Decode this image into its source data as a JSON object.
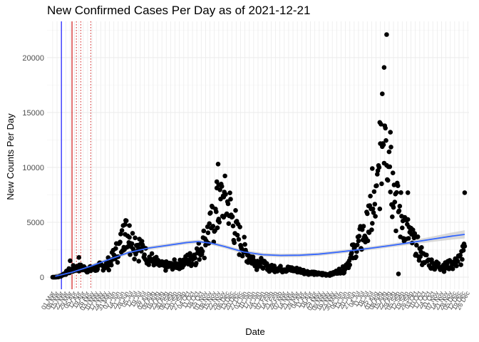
{
  "chart_data": {
    "type": "scatter",
    "title": "New Confirmed Cases Per Day as of 2021-12-21",
    "xlabel": "Date",
    "ylabel": "New Counts Per Day",
    "xlim": [
      "2020-02-21",
      "2021-12-28"
    ],
    "ylim": [
      -1100,
      23300
    ],
    "y_ticks": [
      0,
      5000,
      10000,
      15000,
      20000
    ],
    "x_tick_labels": [
      "01 Mar",
      "08 Mar",
      "15 Mar",
      "22 Mar",
      "29 Mar",
      "05 Apr",
      "12 Apr",
      "19 Apr",
      "26 Apr",
      "03 May",
      "10 May",
      "17 May",
      "24 May",
      "31 May",
      "07 Jun",
      "14 Jun",
      "21 Jun",
      "28 Jun",
      "05 Jul",
      "12 Jul",
      "19 Jul",
      "26 Jul",
      "02 Aug",
      "09 Aug",
      "16 Aug",
      "23 Aug",
      "30 Aug",
      "06 Sep",
      "13 Sep",
      "20 Sep",
      "27 Sep",
      "04 Oct",
      "11 Oct",
      "18 Oct",
      "25 Oct",
      "01 Nov",
      "08 Nov",
      "15 Nov",
      "22 Nov",
      "29 Nov",
      "06 Dec",
      "13 Dec",
      "20 Dec",
      "27 Dec",
      "03 Jan",
      "10 Jan",
      "17 Jan",
      "24 Jan",
      "31 Jan",
      "07 Feb",
      "14 Feb",
      "21 Feb",
      "28 Feb",
      "07 Mar",
      "14 Mar",
      "21 Mar",
      "28 Mar",
      "04 Apr",
      "11 Apr",
      "18 Apr",
      "25 Apr",
      "02 May",
      "09 May",
      "16 May",
      "23 May",
      "30 May",
      "06 Jun",
      "13 Jun",
      "20 Jun",
      "27 Jun",
      "04 Jul",
      "11 Jul",
      "18 Jul",
      "25 Jul",
      "01 Aug",
      "08 Aug",
      "15 Aug",
      "22 Aug",
      "29 Aug",
      "05 Sep",
      "12 Sep",
      "19 Sep",
      "26 Sep",
      "03 Oct",
      "10 Oct",
      "17 Oct",
      "24 Oct",
      "31 Oct",
      "07 Nov",
      "14 Nov",
      "21 Nov",
      "28 Nov",
      "05 Dec",
      "12 Dec",
      "19 Dec",
      "26 Dec"
    ],
    "x_tick_label_rotation_deg": -60,
    "grid": true,
    "legend": "none",
    "reference_lines": [
      {
        "date": "2020-03-15",
        "color": "#0000ff",
        "style": "solid"
      },
      {
        "date": "2020-04-01",
        "color": "#cc0000",
        "style": "solid"
      },
      {
        "date": "2020-04-08",
        "color": "#cc0000",
        "style": "dotted"
      },
      {
        "date": "2020-04-15",
        "color": "#cc0000",
        "style": "dotted"
      },
      {
        "date": "2020-05-01",
        "color": "#cc0000",
        "style": "dotted"
      }
    ],
    "series": [
      {
        "marker": "point",
        "color": "#000000",
        "anchors": [
          [
            "2020-03-01",
            0
          ],
          [
            "2020-03-10",
            20
          ],
          [
            "2020-03-15",
            150
          ],
          [
            "2020-03-22",
            400
          ],
          [
            "2020-04-01",
            700
          ],
          [
            "2020-04-15",
            900
          ],
          [
            "2020-05-01",
            700
          ],
          [
            "2020-05-15",
            900
          ],
          [
            "2020-06-01",
            1300
          ],
          [
            "2020-06-10",
            2200
          ],
          [
            "2020-06-18",
            3000
          ],
          [
            "2020-06-26",
            3900
          ],
          [
            "2020-07-06",
            3500
          ],
          [
            "2020-07-16",
            2900
          ],
          [
            "2020-07-26",
            2300
          ],
          [
            "2020-08-05",
            1600
          ],
          [
            "2020-08-20",
            1100
          ],
          [
            "2020-09-05",
            1000
          ],
          [
            "2020-09-20",
            1200
          ],
          [
            "2020-10-05",
            1600
          ],
          [
            "2020-10-20",
            2300
          ],
          [
            "2020-11-01",
            3500
          ],
          [
            "2020-11-10",
            4800
          ],
          [
            "2020-11-20",
            5800
          ],
          [
            "2020-11-28",
            7000
          ],
          [
            "2020-12-05",
            6800
          ],
          [
            "2020-12-15",
            5000
          ],
          [
            "2020-12-25",
            3500
          ],
          [
            "2021-01-05",
            2200
          ],
          [
            "2021-01-20",
            1400
          ],
          [
            "2021-02-10",
            900
          ],
          [
            "2021-03-01",
            800
          ],
          [
            "2021-03-20",
            700
          ],
          [
            "2021-04-10",
            500
          ],
          [
            "2021-05-01",
            300
          ],
          [
            "2021-05-20",
            250
          ],
          [
            "2021-06-10",
            700
          ],
          [
            "2021-06-20",
            1600
          ],
          [
            "2021-06-30",
            2700
          ],
          [
            "2021-07-10",
            3800
          ],
          [
            "2021-07-20",
            4700
          ],
          [
            "2021-07-28",
            5600
          ],
          [
            "2021-08-04",
            8000
          ],
          [
            "2021-08-10",
            11500
          ],
          [
            "2021-08-16",
            15800
          ],
          [
            "2021-08-22",
            11500
          ],
          [
            "2021-08-30",
            8000
          ],
          [
            "2021-09-08",
            5800
          ],
          [
            "2021-09-20",
            4300
          ],
          [
            "2021-10-01",
            3000
          ],
          [
            "2021-10-15",
            1800
          ],
          [
            "2021-11-01",
            1100
          ],
          [
            "2021-11-20",
            1000
          ],
          [
            "2021-12-05",
            1300
          ],
          [
            "2021-12-15",
            1800
          ],
          [
            "2021-12-21",
            2500
          ]
        ],
        "outliers": [
          [
            "2020-03-29",
            1500
          ],
          [
            "2020-04-12",
            1800
          ],
          [
            "2020-06-22",
            4700
          ],
          [
            "2020-06-25",
            4800
          ],
          [
            "2020-07-02",
            4700
          ],
          [
            "2020-11-19",
            8700
          ],
          [
            "2020-11-21",
            10300
          ],
          [
            "2020-11-22",
            8400
          ],
          [
            "2020-11-30",
            7300
          ],
          [
            "2021-07-20",
            6500
          ],
          [
            "2021-07-26",
            9900
          ],
          [
            "2021-08-07",
            14100
          ],
          [
            "2021-08-11",
            16700
          ],
          [
            "2021-08-14",
            19100
          ],
          [
            "2021-08-18",
            22100
          ],
          [
            "2021-08-24",
            13200
          ],
          [
            "2021-08-28",
            9500
          ],
          [
            "2021-09-06",
            300
          ],
          [
            "2021-09-21",
            7700
          ],
          [
            "2021-12-21",
            7700
          ]
        ]
      },
      {
        "marker": "smooth",
        "color": "#3366ff",
        "band_color": "#cccccc",
        "points": [
          [
            "2020-03-05",
            80
          ],
          [
            "2020-04-01",
            450
          ],
          [
            "2020-05-01",
            1000
          ],
          [
            "2020-06-01",
            1650
          ],
          [
            "2020-07-01",
            2250
          ],
          [
            "2020-08-01",
            2650
          ],
          [
            "2020-09-01",
            2900
          ],
          [
            "2020-10-01",
            3150
          ],
          [
            "2020-10-20",
            3250
          ],
          [
            "2020-11-10",
            3100
          ],
          [
            "2020-12-01",
            2800
          ],
          [
            "2021-01-01",
            2300
          ],
          [
            "2021-02-01",
            2050
          ],
          [
            "2021-03-01",
            1980
          ],
          [
            "2021-04-01",
            2000
          ],
          [
            "2021-05-01",
            2100
          ],
          [
            "2021-06-01",
            2280
          ],
          [
            "2021-07-01",
            2480
          ],
          [
            "2021-08-01",
            2700
          ],
          [
            "2021-09-01",
            2950
          ],
          [
            "2021-10-01",
            3200
          ],
          [
            "2021-11-01",
            3480
          ],
          [
            "2021-12-01",
            3750
          ],
          [
            "2021-12-21",
            3900
          ]
        ],
        "band_halfwidth": [
          250,
          200,
          170,
          160,
          160,
          160,
          160,
          160,
          160,
          160,
          160,
          160,
          160,
          160,
          160,
          160,
          160,
          160,
          160,
          170,
          200,
          250,
          320,
          380
        ]
      }
    ]
  }
}
